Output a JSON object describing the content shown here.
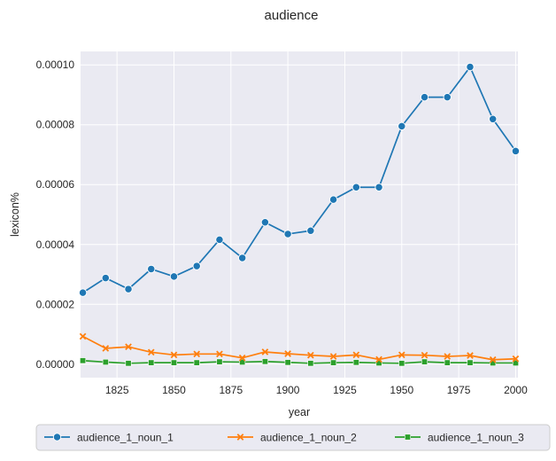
{
  "chart_data": {
    "type": "line",
    "title": "audience",
    "xlabel": "year",
    "ylabel": "lexicon%",
    "xlim": [
      1809,
      2001
    ],
    "ylim": [
      -4.5e-06,
      0.0001045
    ],
    "x_ticks": [
      1825,
      1850,
      1875,
      1900,
      1925,
      1950,
      1975,
      2000
    ],
    "y_ticks": [
      0,
      2e-05,
      4e-05,
      6e-05,
      8e-05,
      0.0001
    ],
    "y_tick_labels": [
      "0.00000",
      "0.00002",
      "0.00004",
      "0.00006",
      "0.00008",
      "0.00010"
    ],
    "grid": true,
    "legend_position": "bottom",
    "x": [
      1810,
      1820,
      1830,
      1840,
      1850,
      1860,
      1870,
      1880,
      1890,
      1900,
      1910,
      1920,
      1930,
      1940,
      1950,
      1960,
      1970,
      1980,
      1990,
      2000
    ],
    "series": [
      {
        "name": "audience_1_noun_1",
        "color": "#1f77b4",
        "marker": "circle",
        "values": [
          2.39e-05,
          2.88e-05,
          2.51e-05,
          3.18e-05,
          2.93e-05,
          3.28e-05,
          4.16e-05,
          3.55e-05,
          4.74e-05,
          4.35e-05,
          4.46e-05,
          5.5e-05,
          5.91e-05,
          5.91e-05,
          7.95e-05,
          8.92e-05,
          8.92e-05,
          9.93e-05,
          8.19e-05,
          7.12e-05
        ]
      },
      {
        "name": "audience_1_noun_2",
        "color": "#ff7f0e",
        "marker": "x",
        "values": [
          9.3e-06,
          5.3e-06,
          5.8e-06,
          4e-06,
          3.1e-06,
          3.4e-06,
          3.4e-06,
          2.1e-06,
          4.1e-06,
          3.5e-06,
          3e-06,
          2.6e-06,
          3.1e-06,
          1.6e-06,
          3.1e-06,
          3e-06,
          2.6e-06,
          2.9e-06,
          1.5e-06,
          1.8e-06
        ]
      },
      {
        "name": "audience_1_noun_3",
        "color": "#2ca02c",
        "marker": "square",
        "values": [
          1.2e-06,
          7e-07,
          3e-07,
          5e-07,
          5e-07,
          5e-07,
          8e-07,
          7e-07,
          9e-07,
          6e-07,
          3e-07,
          5e-07,
          6e-07,
          4e-07,
          3e-07,
          8e-07,
          5e-07,
          5e-07,
          4e-07,
          4e-07
        ]
      }
    ]
  }
}
